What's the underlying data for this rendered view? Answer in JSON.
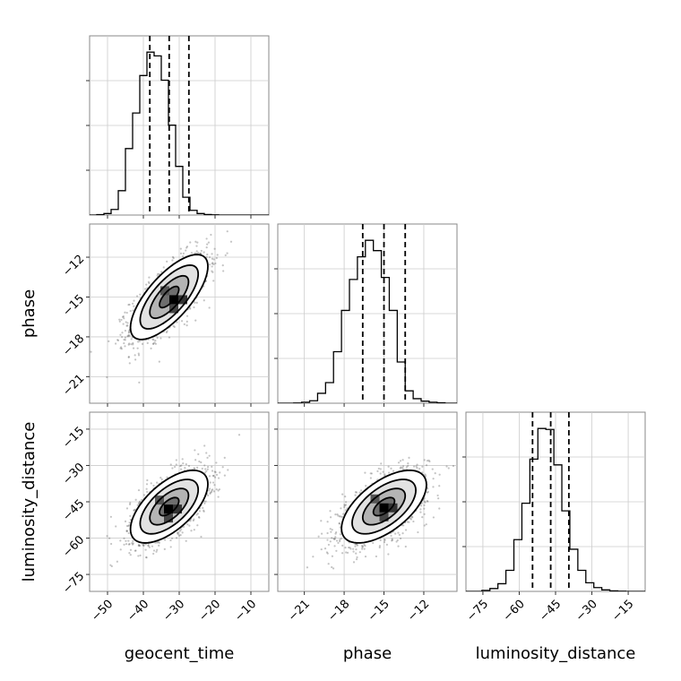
{
  "chart_data": {
    "type": "corner",
    "parameters": [
      {
        "name": "geocent_time",
        "range": [
          -55,
          -5
        ],
        "ticks": [
          -50,
          -40,
          -30,
          -20,
          -10
        ],
        "quantiles": [
          -38.2,
          -32.8,
          -27.3
        ]
      },
      {
        "name": "phase",
        "range": [
          -23,
          -9.5
        ],
        "ticks": [
          -21,
          -18,
          -15,
          -12
        ],
        "quantiles": [
          -16.6,
          -15.0,
          -13.4
        ]
      },
      {
        "name": "luminosity_distance",
        "range": [
          -82,
          -8
        ],
        "ticks": [
          -75,
          -60,
          -45,
          -30,
          -15
        ],
        "quantiles": [
          -54.5,
          -47.0,
          -39.5
        ]
      }
    ],
    "histograms": [
      {
        "param": "geocent_time",
        "bin_start": -55,
        "bin_width": 2,
        "counts": [
          0,
          2,
          8,
          30,
          130,
          355,
          545,
          745,
          870,
          850,
          720,
          480,
          260,
          95,
          25,
          8,
          3,
          1,
          0,
          0,
          0,
          0,
          0,
          0,
          0
        ]
      },
      {
        "param": "phase",
        "bin_start": -23,
        "bin_width": 0.6,
        "counts": [
          0,
          0,
          1,
          5,
          12,
          48,
          100,
          250,
          450,
          600,
          710,
          790,
          740,
          610,
          450,
          200,
          60,
          22,
          10,
          5,
          2,
          0,
          0
        ]
      },
      {
        "param": "luminosity_distance",
        "bin_start": -82,
        "bin_width": 3.3,
        "counts": [
          0,
          0,
          5,
          15,
          40,
          110,
          270,
          460,
          690,
          850,
          845,
          660,
          420,
          220,
          110,
          45,
          20,
          8,
          3,
          1,
          0,
          0,
          0
        ]
      }
    ],
    "pairs": [
      {
        "x": "geocent_time",
        "y": "phase",
        "mean": [
          -32.8,
          -15.0
        ],
        "sd": [
          5.4,
          1.6
        ],
        "rho": 0.72,
        "peak": [
          -31.5,
          -15.2
        ]
      },
      {
        "x": "geocent_time",
        "y": "luminosity_distance",
        "mean": [
          -32.8,
          -47.0
        ],
        "sd": [
          5.4,
          7.5
        ],
        "rho": 0.62,
        "peak": [
          -33.0,
          -48.0
        ]
      },
      {
        "x": "phase",
        "y": "luminosity_distance",
        "mean": [
          -15.0,
          -47.0
        ],
        "sd": [
          1.6,
          7.5
        ],
        "rho": 0.6,
        "peak": [
          -15.0,
          -47.5
        ]
      }
    ],
    "contour_levels_sigma": [
      0.5,
      1.0,
      1.5,
      2.0
    ],
    "grid": true
  }
}
